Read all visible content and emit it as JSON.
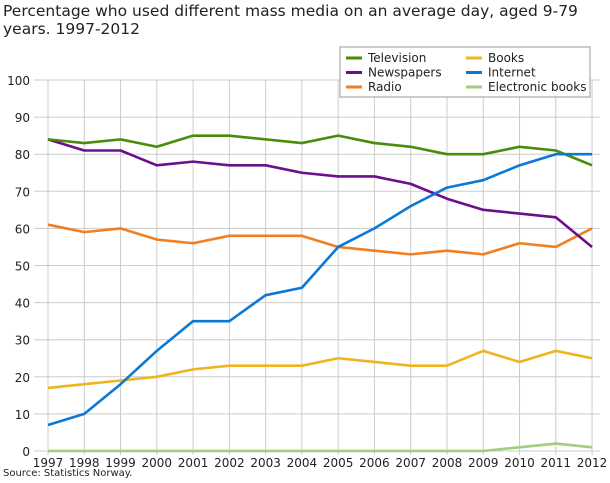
{
  "chart_data": {
    "type": "line",
    "title": "Percentage who used different mass media on an average day, aged 9-79 years. 1997-2012",
    "source": "Source: Statistics Norway.",
    "x": [
      "1997",
      "1998",
      "1999",
      "2000",
      "2001",
      "2002",
      "2003",
      "2004",
      "2005",
      "2006",
      "2007",
      "2008",
      "2009",
      "2010",
      "2011",
      "2012"
    ],
    "ylim": [
      0,
      100
    ],
    "yticks": [
      0,
      10,
      20,
      30,
      40,
      50,
      60,
      70,
      80,
      90,
      100
    ],
    "grid": true,
    "legend_placement": "top-right",
    "series": [
      {
        "name": "Television",
        "color": "#4a8c0a",
        "values": [
          84,
          83,
          84,
          82,
          85,
          85,
          84,
          83,
          85,
          83,
          82,
          80,
          80,
          82,
          81,
          77
        ]
      },
      {
        "name": "Newspapers",
        "color": "#6b0f8a",
        "values": [
          84,
          81,
          81,
          77,
          78,
          77,
          77,
          75,
          74,
          74,
          72,
          68,
          65,
          64,
          63,
          55
        ]
      },
      {
        "name": "Radio",
        "color": "#f07f22",
        "values": [
          61,
          59,
          60,
          57,
          56,
          58,
          58,
          58,
          55,
          54,
          53,
          54,
          53,
          56,
          55,
          60
        ]
      },
      {
        "name": "Books",
        "color": "#f0b421",
        "values": [
          17,
          18,
          19,
          20,
          22,
          23,
          23,
          23,
          25,
          24,
          23,
          23,
          27,
          24,
          27,
          25
        ]
      },
      {
        "name": "Internet",
        "color": "#0c78d6",
        "values": [
          7,
          10,
          18,
          27,
          35,
          35,
          42,
          44,
          55,
          60,
          66,
          71,
          73,
          77,
          80,
          80
        ]
      },
      {
        "name": "Electronic books",
        "color": "#9fcf7d",
        "values": [
          0,
          0,
          0,
          0,
          0,
          0,
          0,
          0,
          0,
          0,
          0,
          0,
          0,
          1,
          2,
          1
        ]
      }
    ]
  }
}
